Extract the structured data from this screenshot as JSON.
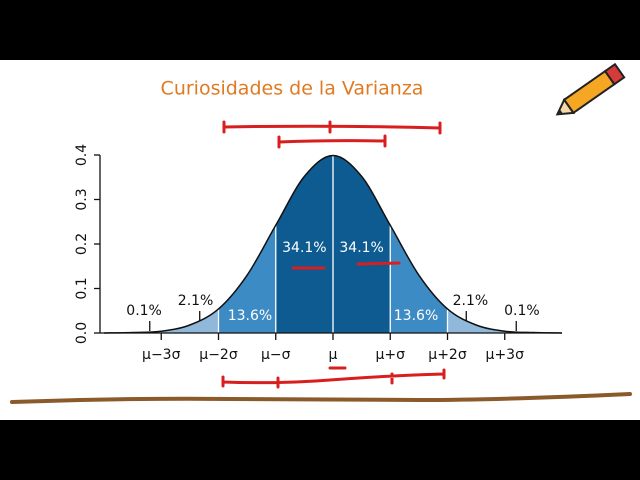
{
  "chart_data": {
    "type": "normal",
    "title": "Curiosidades de la Varianza",
    "x": [
      -4,
      -3.5,
      -3,
      -2.5,
      -2,
      -1.5,
      -1,
      -0.5,
      0,
      0.5,
      1,
      1.5,
      2,
      2.5,
      3,
      3.5,
      4
    ],
    "values": [
      0.0,
      0.001,
      0.004,
      0.018,
      0.054,
      0.13,
      0.242,
      0.352,
      0.399,
      0.352,
      0.242,
      0.13,
      0.054,
      0.018,
      0.004,
      0.001,
      0.0
    ],
    "xlim": [
      -4,
      4
    ],
    "ylim": [
      0,
      0.4
    ],
    "xticks": [
      {
        "value": -3,
        "label": "μ−3σ"
      },
      {
        "value": -2,
        "label": "μ−2σ"
      },
      {
        "value": -1,
        "label": "μ−σ"
      },
      {
        "value": 0,
        "label": "μ"
      },
      {
        "value": 1,
        "label": "μ+σ"
      },
      {
        "value": 2,
        "label": "μ+2σ"
      },
      {
        "value": 3,
        "label": "μ+3σ"
      }
    ],
    "yticks": [
      {
        "value": 0,
        "label": "0.0"
      },
      {
        "value": 0.1,
        "label": "0.1"
      },
      {
        "value": 0.2,
        "label": "0.2"
      },
      {
        "value": 0.3,
        "label": "0.3"
      },
      0.4
    ],
    "regions": [
      0.1,
      2.1,
      13.6,
      34.1,
      34.1,
      13.6,
      2.1,
      0.1
    ],
    "region_labels": [
      "0.1%",
      "2.1%",
      "13.6%",
      "34.1%",
      "34.1%",
      "13.6%",
      "2.1%",
      "0.1%"
    ],
    "colors": [
      "#8fb8da",
      "#3d8bc4",
      "#0d5b91"
    ]
  }
}
